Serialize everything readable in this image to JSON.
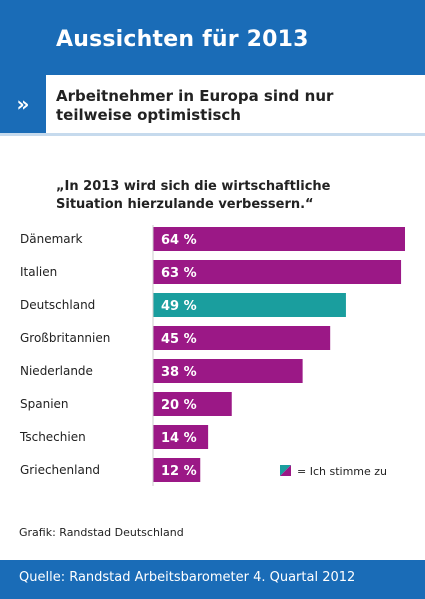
{
  "header": {
    "title": "Aussichten für 2013",
    "chevron": "»"
  },
  "subtitle": "Arbeitnehmer in Europa sind nur teilweise optimistisch",
  "chart_data": {
    "type": "bar",
    "orientation": "horizontal",
    "title": "„In 2013 wird sich die wirtschaftliche Situation hierzulande verbessern.“",
    "categories": [
      "Dänemark",
      "Italien",
      "Deutschland",
      "Großbritannien",
      "Niederlande",
      "Spanien",
      "Tschechien",
      "Griechenland"
    ],
    "values": [
      64,
      63,
      49,
      45,
      38,
      20,
      14,
      12
    ],
    "value_labels": [
      "64 %",
      "63 %",
      "49 %",
      "45 %",
      "38 %",
      "20 %",
      "14 %",
      "12 %"
    ],
    "unit": "%",
    "xlim": [
      0,
      64
    ],
    "colors": {
      "default": "#9b1886",
      "highlight": "#1a9e9e"
    },
    "highlight_category": "Deutschland",
    "legend": {
      "label": "= Ich stimme zu",
      "position": "bottom-right"
    },
    "grid": false
  },
  "caption": "Grafik: Randstad Deutschland",
  "footer": {
    "source": "Quelle: Randstad Arbeitsbarometer 4. Quartal 2012"
  }
}
